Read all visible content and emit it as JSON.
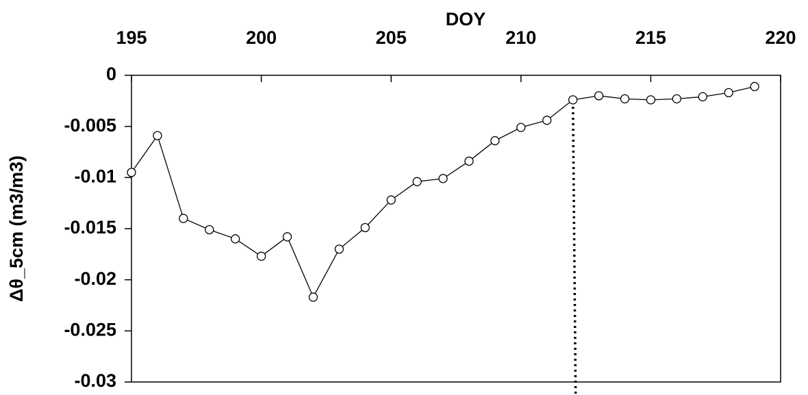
{
  "chart_data": {
    "type": "line",
    "xlabel": "DOY",
    "ylabel": "Δθ_5cm (m3/m3)",
    "x": [
      195,
      196,
      197,
      198,
      199,
      200,
      201,
      202,
      203,
      204,
      205,
      206,
      207,
      208,
      209,
      210,
      211,
      212,
      213,
      214,
      215,
      216,
      217,
      218,
      219
    ],
    "series": [
      {
        "color": "#000000",
        "values": [
          -0.0095,
          -0.0059,
          -0.014,
          -0.0151,
          -0.016,
          -0.0177,
          -0.0158,
          -0.0217,
          -0.017,
          -0.0149,
          -0.0122,
          -0.0104,
          -0.0101,
          -0.0084,
          -0.0064,
          -0.0051,
          -0.0044,
          -0.0024,
          -0.002,
          -0.0023,
          -0.0024,
          -0.0023,
          -0.0021,
          -0.0017,
          -0.0011
        ]
      }
    ],
    "xlim": [
      195,
      220
    ],
    "xticks": [
      195,
      200,
      205,
      210,
      215,
      220
    ],
    "ylim": [
      -0.03,
      0
    ],
    "yticks": [
      0,
      -0.005,
      -0.01,
      -0.015,
      -0.02,
      -0.025,
      -0.03
    ],
    "vline_x": 212,
    "vline_color": "#000000"
  }
}
